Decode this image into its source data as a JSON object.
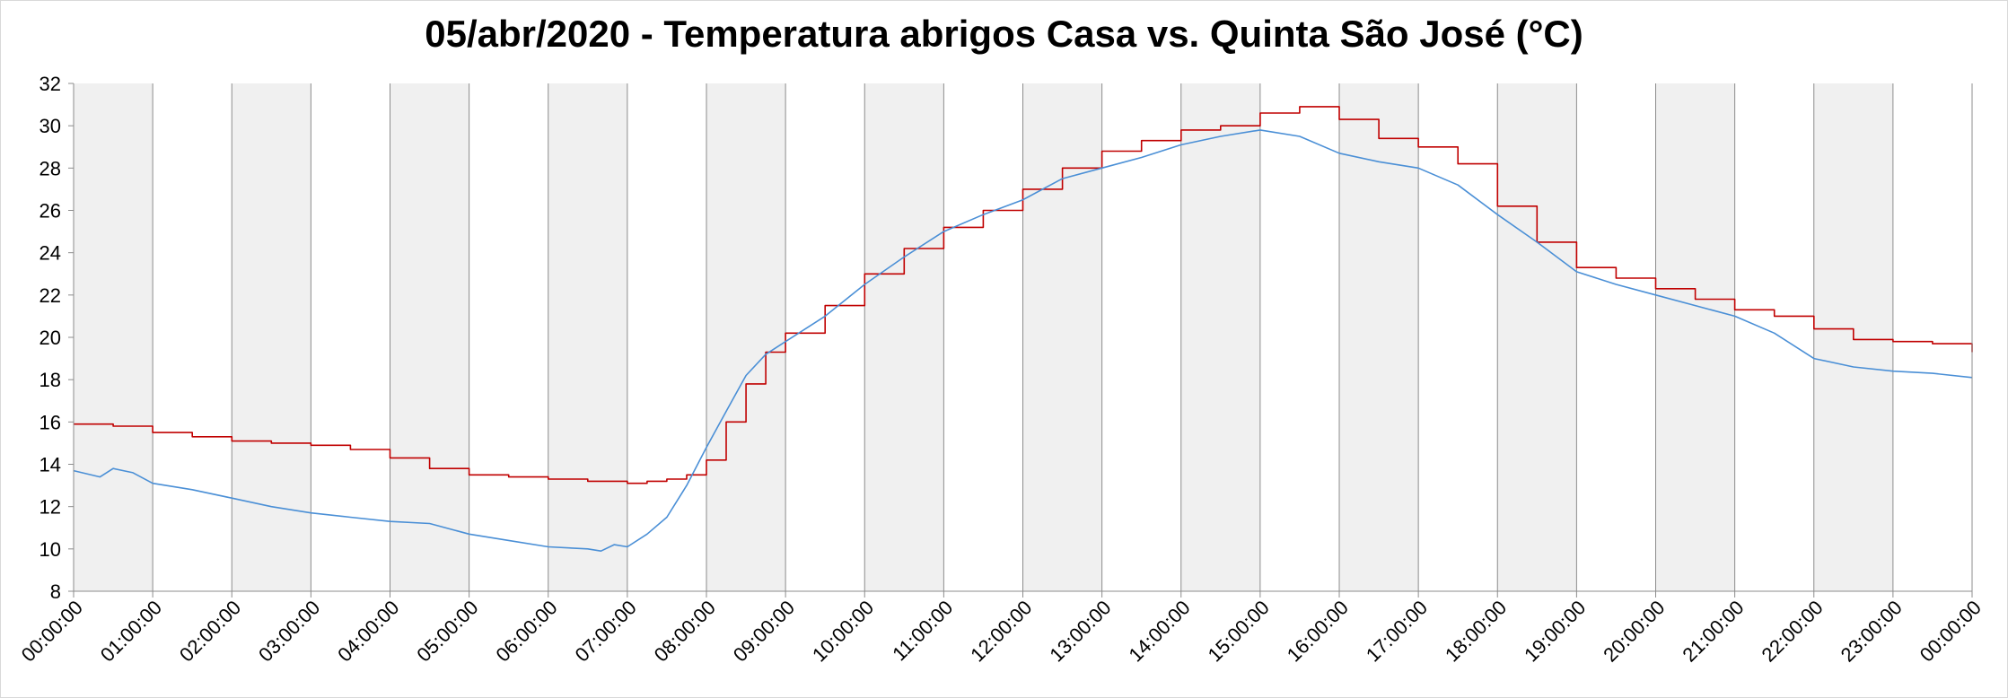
{
  "chart_data": {
    "type": "line",
    "title": "05/abr/2020 - Temperatura abrigos Casa vs. Quinta São José (°C)",
    "xlabel": "",
    "ylabel": "",
    "ylim": [
      8,
      32
    ],
    "yticks": [
      8,
      10,
      12,
      14,
      16,
      18,
      20,
      22,
      24,
      26,
      28,
      30,
      32
    ],
    "xlim_hours": [
      0,
      24
    ],
    "xtick_labels": [
      "00:00:00",
      "01:00:00",
      "02:00:00",
      "03:00:00",
      "04:00:00",
      "05:00:00",
      "06:00:00",
      "07:00:00",
      "08:00:00",
      "09:00:00",
      "10:00:00",
      "11:00:00",
      "12:00:00",
      "13:00:00",
      "14:00:00",
      "15:00:00",
      "16:00:00",
      "17:00:00",
      "18:00:00",
      "19:00:00",
      "20:00:00",
      "21:00:00",
      "22:00:00",
      "23:00:00",
      "00:00:00"
    ],
    "grid": "vertical hourly lines, alternating shaded hour bands",
    "legend": "none",
    "band_color": "#f0f0f0",
    "series": [
      {
        "color": "#c00000",
        "style": "step",
        "x": [
          "00:00",
          "00:30",
          "01:00",
          "01:30",
          "02:00",
          "02:30",
          "03:00",
          "03:30",
          "04:00",
          "04:30",
          "05:00",
          "05:30",
          "06:00",
          "06:30",
          "07:00",
          "07:15",
          "07:30",
          "07:45",
          "08:00",
          "08:15",
          "08:30",
          "08:45",
          "09:00",
          "09:30",
          "10:00",
          "10:30",
          "11:00",
          "11:30",
          "12:00",
          "12:30",
          "13:00",
          "13:30",
          "14:00",
          "14:30",
          "15:00",
          "15:30",
          "16:00",
          "16:30",
          "17:00",
          "17:30",
          "18:00",
          "18:30",
          "19:00",
          "19:30",
          "20:00",
          "20:30",
          "21:00",
          "21:30",
          "22:00",
          "22:30",
          "23:00",
          "23:30",
          "24:00"
        ],
        "y": [
          15.9,
          15.8,
          15.5,
          15.3,
          15.1,
          15.0,
          14.9,
          14.7,
          14.3,
          13.8,
          13.5,
          13.4,
          13.3,
          13.2,
          13.1,
          13.2,
          13.3,
          13.5,
          14.2,
          16.0,
          17.8,
          19.3,
          20.2,
          21.5,
          23.0,
          24.2,
          25.2,
          26.0,
          27.0,
          28.0,
          28.8,
          29.3,
          29.8,
          30.0,
          30.6,
          30.9,
          30.3,
          29.4,
          29.0,
          28.2,
          26.2,
          24.5,
          23.3,
          22.8,
          22.3,
          21.8,
          21.3,
          21.0,
          20.4,
          19.9,
          19.8,
          19.7,
          19.3
        ]
      },
      {
        "color": "#4a8fd6",
        "style": "line",
        "x": [
          "00:00",
          "00:20",
          "00:30",
          "00:45",
          "01:00",
          "01:30",
          "02:00",
          "02:30",
          "03:00",
          "03:30",
          "04:00",
          "04:30",
          "05:00",
          "05:30",
          "06:00",
          "06:30",
          "06:40",
          "06:50",
          "07:00",
          "07:15",
          "07:30",
          "07:45",
          "08:00",
          "08:15",
          "08:30",
          "08:45",
          "09:00",
          "09:30",
          "10:00",
          "10:30",
          "11:00",
          "11:30",
          "12:00",
          "12:30",
          "13:00",
          "13:30",
          "14:00",
          "14:30",
          "15:00",
          "15:30",
          "16:00",
          "16:30",
          "17:00",
          "17:30",
          "18:00",
          "18:30",
          "19:00",
          "19:30",
          "20:00",
          "20:30",
          "21:00",
          "21:30",
          "22:00",
          "22:30",
          "23:00",
          "23:30",
          "24:00"
        ],
        "y": [
          13.7,
          13.4,
          13.8,
          13.6,
          13.1,
          12.8,
          12.4,
          12.0,
          11.7,
          11.5,
          11.3,
          11.2,
          10.7,
          10.4,
          10.1,
          10.0,
          9.9,
          10.2,
          10.1,
          10.7,
          11.5,
          13.0,
          14.8,
          16.5,
          18.2,
          19.2,
          19.8,
          21.0,
          22.5,
          23.8,
          25.0,
          25.8,
          26.5,
          27.5,
          28.0,
          28.5,
          29.1,
          29.5,
          29.8,
          29.5,
          28.7,
          28.3,
          28.0,
          27.2,
          25.8,
          24.5,
          23.1,
          22.5,
          22.0,
          21.5,
          21.0,
          20.2,
          19.0,
          18.6,
          18.4,
          18.3,
          18.1
        ]
      }
    ]
  }
}
